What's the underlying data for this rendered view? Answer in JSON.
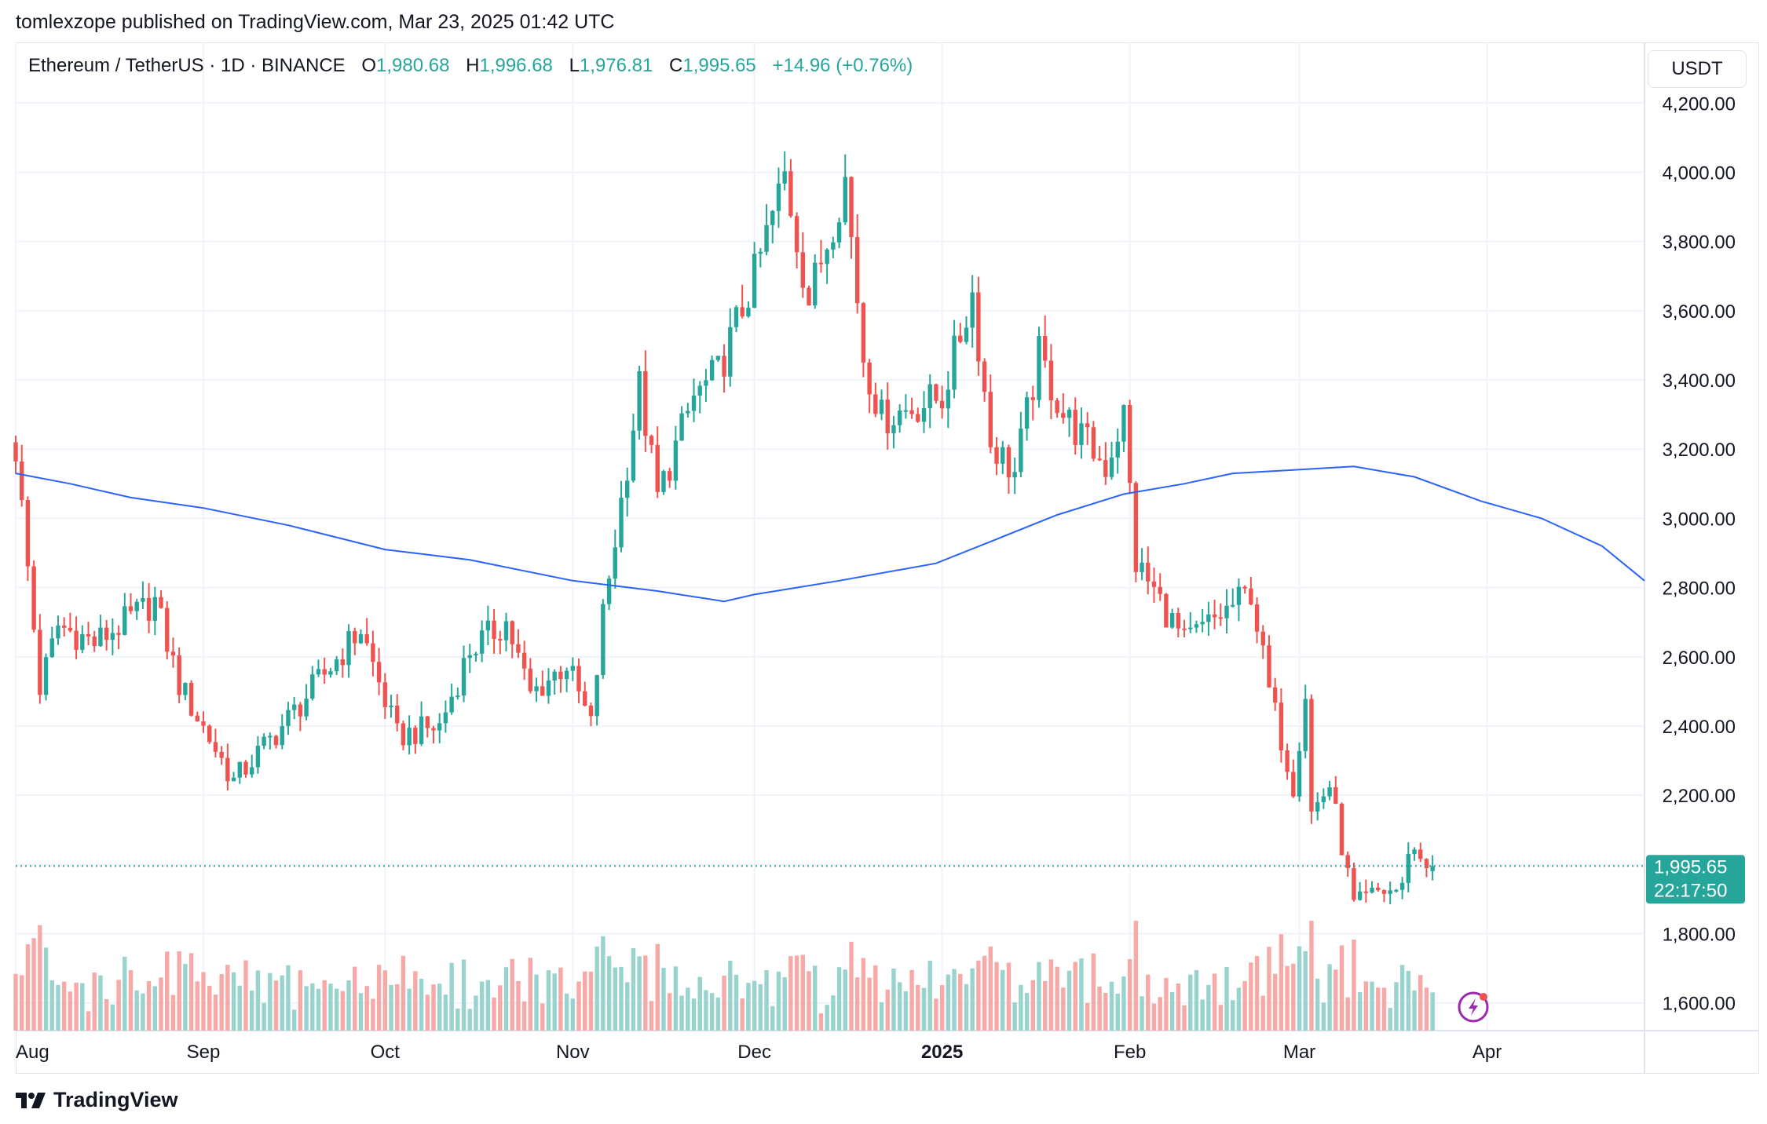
{
  "header": {
    "published": "tomlexzope published on TradingView.com, Mar 23, 2025 01:42 UTC"
  },
  "legend": {
    "symbol": "Ethereum / TetherUS · 1D · BINANCE",
    "open_label": "O",
    "open": "1,980.68",
    "high_label": "H",
    "high": "1,996.68",
    "low_label": "L",
    "low": "1,976.81",
    "close_label": "C",
    "close": "1,995.65",
    "change": "+14.96 (+0.76%)"
  },
  "currency": "USDT",
  "price_tag": {
    "price": "1,995.65",
    "countdown": "22:17:50"
  },
  "footer": {
    "brand": "TradingView"
  },
  "colors": {
    "up": "#26a69a",
    "down": "#ef5350",
    "ma": "#2962ff",
    "grid": "#f0f3fa"
  },
  "chart_data": {
    "type": "candlestick",
    "symbol": "ETH/USDT",
    "interval": "1D",
    "y_axis": {
      "ticks": [
        1600,
        1800,
        2000,
        2200,
        2400,
        2600,
        2800,
        3000,
        3200,
        3400,
        3600,
        3800,
        4000,
        4200
      ],
      "tick_labels": [
        "1,600.00",
        "1,800.00",
        "",
        "2,200.00",
        "2,400.00",
        "2,600.00",
        "2,800.00",
        "3,000.00",
        "3,200.00",
        "3,400.00",
        "3,600.00",
        "3,800.00",
        "4,000.00",
        "4,200.00"
      ],
      "range": [
        1520,
        4280
      ],
      "position": "right"
    },
    "x_axis": {
      "ticks": [
        {
          "date": "2024-08-01",
          "label": "Aug",
          "bold": false
        },
        {
          "date": "2024-09-01",
          "label": "Sep",
          "bold": false
        },
        {
          "date": "2024-10-01",
          "label": "Oct",
          "bold": false
        },
        {
          "date": "2024-11-01",
          "label": "Nov",
          "bold": false
        },
        {
          "date": "2024-12-01",
          "label": "Dec",
          "bold": false
        },
        {
          "date": "2025-01-01",
          "label": "2025",
          "bold": true
        },
        {
          "date": "2025-02-01",
          "label": "Feb",
          "bold": false
        },
        {
          "date": "2025-03-01",
          "label": "Mar",
          "bold": false
        },
        {
          "date": "2025-04-01",
          "label": "Apr",
          "bold": false
        }
      ],
      "range": [
        "2024-08-01",
        "2025-04-27"
      ]
    },
    "grid": true,
    "last_price": 1995.65,
    "ma_line": [
      {
        "date": "2024-08-01",
        "value": 3130
      },
      {
        "date": "2024-08-10",
        "value": 3100
      },
      {
        "date": "2024-08-20",
        "value": 3060
      },
      {
        "date": "2024-09-01",
        "value": 3030
      },
      {
        "date": "2024-09-15",
        "value": 2980
      },
      {
        "date": "2024-10-01",
        "value": 2910
      },
      {
        "date": "2024-10-15",
        "value": 2880
      },
      {
        "date": "2024-11-01",
        "value": 2820
      },
      {
        "date": "2024-11-15",
        "value": 2790
      },
      {
        "date": "2024-11-26",
        "value": 2760
      },
      {
        "date": "2024-12-01",
        "value": 2780
      },
      {
        "date": "2024-12-15",
        "value": 2820
      },
      {
        "date": "2024-12-31",
        "value": 2870
      },
      {
        "date": "2025-01-10",
        "value": 2940
      },
      {
        "date": "2025-01-20",
        "value": 3010
      },
      {
        "date": "2025-01-31",
        "value": 3070
      },
      {
        "date": "2025-02-10",
        "value": 3100
      },
      {
        "date": "2025-02-18",
        "value": 3130
      },
      {
        "date": "2025-02-28",
        "value": 3140
      },
      {
        "date": "2025-03-10",
        "value": 3150
      },
      {
        "date": "2025-03-20",
        "value": 3120
      },
      {
        "date": "2025-03-31",
        "value": 3050
      },
      {
        "date": "2025-04-10",
        "value": 3000
      },
      {
        "date": "2025-04-20",
        "value": 2920
      },
      {
        "date": "2025-04-27",
        "value": 2820
      }
    ],
    "anchors": [
      {
        "date": "2024-08-01",
        "value": 3200
      },
      {
        "date": "2024-08-05",
        "value": 2510
      },
      {
        "date": "2024-08-08",
        "value": 2690
      },
      {
        "date": "2024-08-14",
        "value": 2640
      },
      {
        "date": "2024-08-24",
        "value": 2760
      },
      {
        "date": "2024-08-28",
        "value": 2520
      },
      {
        "date": "2024-09-06",
        "value": 2240
      },
      {
        "date": "2024-09-15",
        "value": 2420
      },
      {
        "date": "2024-09-27",
        "value": 2680
      },
      {
        "date": "2024-10-03",
        "value": 2370
      },
      {
        "date": "2024-10-10",
        "value": 2400
      },
      {
        "date": "2024-10-15",
        "value": 2620
      },
      {
        "date": "2024-10-21",
        "value": 2700
      },
      {
        "date": "2024-10-25",
        "value": 2490
      },
      {
        "date": "2024-10-31",
        "value": 2580
      },
      {
        "date": "2024-11-04",
        "value": 2400
      },
      {
        "date": "2024-11-06",
        "value": 2720
      },
      {
        "date": "2024-11-12",
        "value": 3380
      },
      {
        "date": "2024-11-15",
        "value": 3060
      },
      {
        "date": "2024-11-21",
        "value": 3350
      },
      {
        "date": "2024-11-25",
        "value": 3420
      },
      {
        "date": "2024-12-01",
        "value": 3700
      },
      {
        "date": "2024-12-06",
        "value": 3990
      },
      {
        "date": "2024-12-10",
        "value": 3630
      },
      {
        "date": "2024-12-16",
        "value": 3980
      },
      {
        "date": "2024-12-19",
        "value": 3470
      },
      {
        "date": "2024-12-22",
        "value": 3290
      },
      {
        "date": "2025-01-01",
        "value": 3350
      },
      {
        "date": "2025-01-06",
        "value": 3650
      },
      {
        "date": "2025-01-09",
        "value": 3220
      },
      {
        "date": "2025-01-13",
        "value": 3130
      },
      {
        "date": "2025-01-17",
        "value": 3470
      },
      {
        "date": "2025-01-21",
        "value": 3300
      },
      {
        "date": "2025-01-28",
        "value": 3150
      },
      {
        "date": "2025-01-31",
        "value": 3300
      },
      {
        "date": "2025-02-02",
        "value": 2870
      },
      {
        "date": "2025-02-05",
        "value": 2790
      },
      {
        "date": "2025-02-10",
        "value": 2640
      },
      {
        "date": "2025-02-13",
        "value": 2680
      },
      {
        "date": "2025-02-21",
        "value": 2790
      },
      {
        "date": "2025-02-24",
        "value": 2500
      },
      {
        "date": "2025-02-28",
        "value": 2230
      },
      {
        "date": "2025-03-02",
        "value": 2500
      },
      {
        "date": "2025-03-03",
        "value": 2150
      },
      {
        "date": "2025-03-06",
        "value": 2230
      },
      {
        "date": "2025-03-10",
        "value": 1880
      },
      {
        "date": "2025-03-14",
        "value": 1920
      },
      {
        "date": "2025-03-18",
        "value": 1930
      },
      {
        "date": "2025-03-19",
        "value": 2050
      },
      {
        "date": "2025-03-23",
        "value": 1995.65
      }
    ]
  }
}
